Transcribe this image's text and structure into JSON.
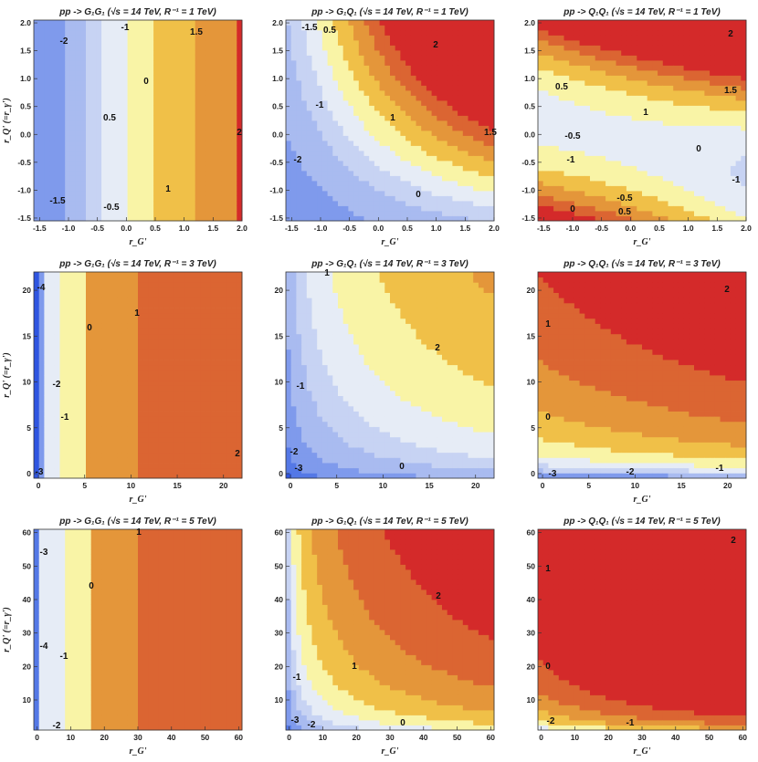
{
  "chart_data": [
    {
      "type": "contour",
      "title": "pp -> G₁G₁ (√s = 14 TeV, R⁻¹ = 1 TeV)",
      "xlabel": "r_G'",
      "ylabel": "r_Q' (=r_γ')",
      "xlim": [
        -1.6,
        2.0
      ],
      "ylim": [
        -1.55,
        2.05
      ],
      "xticks": [
        "-1.5",
        "-1.0",
        "-0.5",
        "0.0",
        "0.5",
        "1.0",
        "1.5",
        "2.0"
      ],
      "yticks": [
        "-1.5",
        "-1.0",
        "-0.5",
        "0.0",
        "0.5",
        "1.0",
        "1.5",
        "2.0"
      ],
      "contour_labels": [
        "-2",
        "-1",
        "0",
        "0.5",
        "1",
        "1.5",
        "2",
        "-1.5",
        "-0.5"
      ]
    },
    {
      "type": "contour",
      "title": "pp -> G₁Q₁ (√s = 14 TeV, R⁻¹ = 1 TeV)",
      "xlabel": "r_G'",
      "ylabel": "",
      "xlim": [
        -1.6,
        2.0
      ],
      "ylim": [
        -1.55,
        2.05
      ],
      "xticks": [
        "-1.5",
        "-1.0",
        "-0.5",
        "0.0",
        "0.5",
        "1.0",
        "1.5",
        "2.0"
      ],
      "yticks": [
        "-1.5",
        "-1.0",
        "-0.5",
        "0.0",
        "0.5",
        "1.0",
        "1.5",
        "2.0"
      ],
      "contour_labels": [
        "-1.5",
        "-1",
        "-2",
        "0.5",
        "1",
        "2",
        "1.5",
        "0"
      ]
    },
    {
      "type": "contour",
      "title": "pp -> Q₁Q₁ (√s = 14 TeV, R⁻¹ = 1 TeV)",
      "xlabel": "r_G'",
      "ylabel": "",
      "xlim": [
        -1.6,
        2.0
      ],
      "ylim": [
        -1.55,
        2.05
      ],
      "xticks": [
        "-1.5",
        "-1.0",
        "-0.5",
        "0.0",
        "0.5",
        "1.0",
        "1.5",
        "2.0"
      ],
      "yticks": [
        "-1.5",
        "-1.0",
        "-0.5",
        "0.0",
        "0.5",
        "1.0",
        "1.5",
        "2.0"
      ],
      "contour_labels": [
        "2",
        "1.5",
        "0.5",
        "1",
        "-0.5",
        "0",
        "-1",
        "-1",
        "-0.5",
        "0",
        "0.5"
      ]
    },
    {
      "type": "contour",
      "title": "pp -> G₁G₁ (√s = 14 TeV, R⁻¹ = 3 TeV)",
      "xlabel": "r_G'",
      "ylabel": "r_Q' (=r_γ')",
      "xlim": [
        -0.5,
        22
      ],
      "ylim": [
        -0.5,
        22
      ],
      "xticks": [
        "0",
        "5",
        "10",
        "15",
        "20"
      ],
      "yticks": [
        "0",
        "5",
        "10",
        "15",
        "20"
      ],
      "contour_labels": [
        "-4",
        "0",
        "1",
        "-2",
        "-1",
        "2",
        "-3"
      ]
    },
    {
      "type": "contour",
      "title": "pp -> G₁Q₁ (√s = 14 TeV, R⁻¹ = 3 TeV)",
      "xlabel": "",
      "ylabel": "",
      "xlim": [
        -0.5,
        22
      ],
      "ylim": [
        -0.5,
        22
      ],
      "xticks": [
        "0",
        "5",
        "10",
        "15",
        "20"
      ],
      "yticks": [
        "0",
        "5",
        "10",
        "15",
        "20"
      ],
      "contour_labels": [
        "1",
        "2",
        "-1",
        "-2",
        "-3",
        "0"
      ]
    },
    {
      "type": "contour",
      "title": "pp -> Q₁Q₁ (√s = 14 TeV, R⁻¹ = 3 TeV)",
      "xlabel": "r_G'",
      "ylabel": "",
      "xlim": [
        -0.5,
        22
      ],
      "ylim": [
        -0.5,
        22
      ],
      "xticks": [
        "0",
        "5",
        "10",
        "15",
        "20"
      ],
      "yticks": [
        "0",
        "5",
        "10",
        "15",
        "20"
      ],
      "contour_labels": [
        "2",
        "1",
        "0",
        "-3",
        "-2",
        "-1"
      ]
    },
    {
      "type": "contour",
      "title": "pp -> G₁G₁ (√s = 14 TeV, R⁻¹ = 5 TeV)",
      "xlabel": "r_G'",
      "ylabel": "r_Q' (=r_γ')",
      "xlim": [
        -1,
        61
      ],
      "ylim": [
        1,
        61
      ],
      "xticks": [
        "0",
        "10",
        "20",
        "30",
        "40",
        "50",
        "60"
      ],
      "yticks": [
        "10",
        "20",
        "30",
        "40",
        "50",
        "60"
      ],
      "contour_labels": [
        "-3",
        "1",
        "0",
        "-4",
        "-1",
        "-2"
      ]
    },
    {
      "type": "contour",
      "title": "pp -> G₁Q₁ (√s = 14 TeV, R⁻¹ = 5 TeV)",
      "xlabel": "r_G'",
      "ylabel": "",
      "xlim": [
        -1,
        61
      ],
      "ylim": [
        1,
        61
      ],
      "xticks": [
        "0",
        "10",
        "20",
        "30",
        "40",
        "50",
        "60"
      ],
      "yticks": [
        "10",
        "20",
        "30",
        "40",
        "50",
        "60"
      ],
      "contour_labels": [
        "2",
        "1",
        "-1",
        "-3",
        "-2",
        "0"
      ]
    },
    {
      "type": "contour",
      "title": "pp -> Q₁Q₁ (√s = 14 TeV, R⁻¹ = 5 TeV)",
      "xlabel": "r_G'",
      "ylabel": "",
      "xlim": [
        -1,
        61
      ],
      "ylim": [
        1,
        61
      ],
      "xticks": [
        "0",
        "10",
        "20",
        "30",
        "40",
        "50",
        "60"
      ],
      "yticks": [
        "10",
        "20",
        "30",
        "40",
        "50",
        "60"
      ],
      "contour_labels": [
        "2",
        "1",
        "0",
        "-2",
        "-1"
      ]
    }
  ],
  "colors": {
    "level_-4": "#2f55e0",
    "level_-3": "#5478e6",
    "level_-2": "#7f9aec",
    "level_-1": "#a9bbf0",
    "level_-0.5": "#c7d3f3",
    "level_0": "#e6ecf6",
    "level_0.25": "#fbfbe3",
    "level_0.5": "#f9f4a6",
    "level_0.75": "#f6e75a",
    "level_1": "#f0c048",
    "level_1.5": "#e4963a",
    "level_2": "#db6532",
    "level_2.5": "#d42a2a"
  }
}
